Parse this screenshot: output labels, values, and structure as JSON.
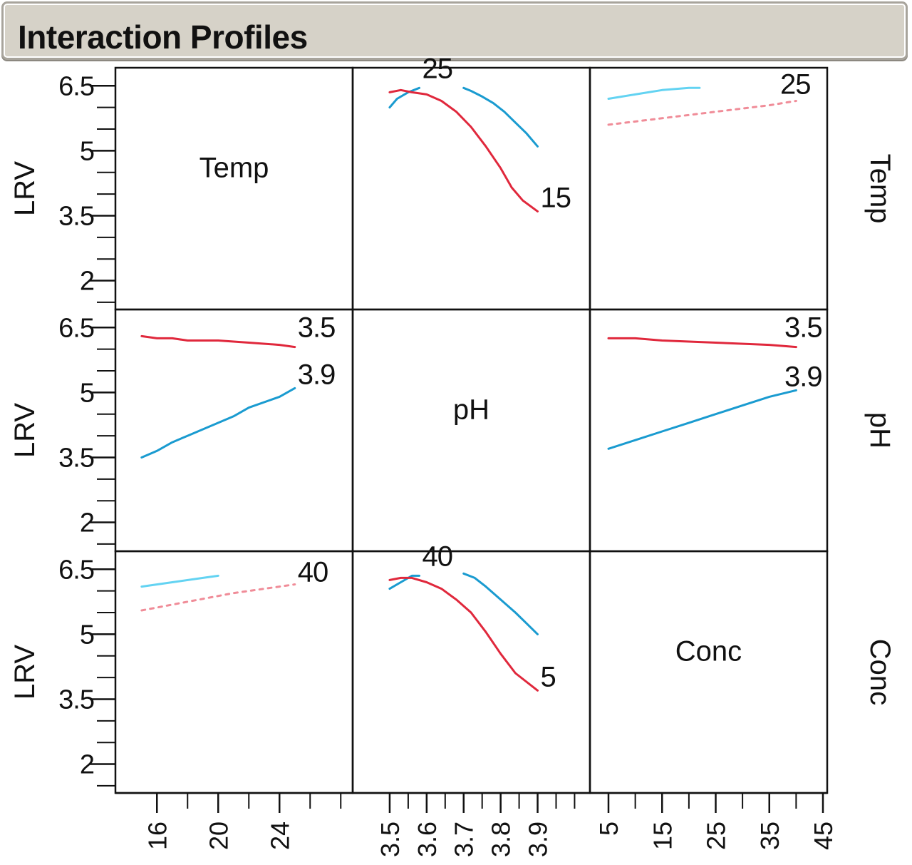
{
  "title": "Interaction Profiles",
  "colors": {
    "red": "#e0283c",
    "blue": "#1a9bd0",
    "light_blue": "#63d3f2",
    "pink": "#f08c98"
  },
  "chart_data": {
    "type": "line",
    "grid": false,
    "y_axis_label": "LRV",
    "y_ticks": [
      "6.5",
      "5",
      "3.5",
      "2"
    ],
    "y_tick_values": [
      6.5,
      5,
      3.5,
      2
    ],
    "y_range": [
      1.4,
      6.85
    ],
    "factors": [
      {
        "name": "Temp",
        "range": [
          14.5,
          28.5
        ],
        "ticks": [
          "16",
          "20",
          "24"
        ],
        "tick_values": [
          16,
          20,
          24
        ]
      },
      {
        "name": "pH",
        "range": [
          3.45,
          4.03
        ],
        "ticks": [
          "3.5",
          "3.6",
          "3.7",
          "3.8",
          "3.9"
        ],
        "tick_values": [
          3.5,
          3.6,
          3.7,
          3.8,
          3.9
        ]
      },
      {
        "name": "Conc",
        "range": [
          5,
          45
        ],
        "ticks": [
          "5",
          "15",
          "25",
          "35",
          "45"
        ],
        "tick_values": [
          5,
          15,
          25,
          35,
          45
        ]
      }
    ],
    "panels": [
      {
        "row": 0,
        "col": 0,
        "diagonal": true,
        "label": "Temp"
      },
      {
        "row": 0,
        "col": 1,
        "labels": [
          "25",
          "15"
        ],
        "series": [
          {
            "color": "blue",
            "dashed": false,
            "x": [
              3.5,
              3.52,
              3.55,
              3.58
            ],
            "y": [
              6.0,
              6.2,
              6.35,
              6.45
            ]
          },
          {
            "color": "blue",
            "dashed": false,
            "x": [
              3.7,
              3.72,
              3.75,
              3.78,
              3.81,
              3.84,
              3.87,
              3.9
            ],
            "y": [
              6.45,
              6.38,
              6.25,
              6.1,
              5.9,
              5.65,
              5.4,
              5.1
            ]
          },
          {
            "color": "red",
            "dashed": false,
            "x": [
              3.5,
              3.53,
              3.56,
              3.6,
              3.64,
              3.68,
              3.72,
              3.76,
              3.8,
              3.83,
              3.86,
              3.9
            ],
            "y": [
              6.35,
              6.4,
              6.35,
              6.3,
              6.15,
              5.9,
              5.55,
              5.1,
              4.6,
              4.15,
              3.85,
              3.6
            ]
          }
        ]
      },
      {
        "row": 0,
        "col": 2,
        "labels": [
          "25"
        ],
        "series": [
          {
            "color": "light_blue",
            "dashed": false,
            "x": [
              5,
              10,
              15,
              20,
              22
            ],
            "y": [
              6.2,
              6.3,
              6.4,
              6.45,
              6.45
            ]
          },
          {
            "color": "pink",
            "dashed": true,
            "x": [
              5,
              15,
              25,
              35,
              40
            ],
            "y": [
              5.6,
              5.75,
              5.9,
              6.05,
              6.15
            ]
          }
        ]
      },
      {
        "row": 1,
        "col": 0,
        "labels": [
          "3.5",
          "3.9"
        ],
        "series": [
          {
            "color": "red",
            "dashed": false,
            "x": [
              15,
              16,
              17,
              18,
              20,
              22,
              24,
              25
            ],
            "y": [
              6.3,
              6.25,
              6.25,
              6.2,
              6.2,
              6.15,
              6.1,
              6.05
            ]
          },
          {
            "color": "blue",
            "dashed": false,
            "x": [
              15,
              16,
              17,
              18,
              20,
              21,
              22,
              24,
              25
            ],
            "y": [
              3.5,
              3.65,
              3.85,
              4.0,
              4.3,
              4.45,
              4.65,
              4.9,
              5.1
            ]
          }
        ]
      },
      {
        "row": 1,
        "col": 1,
        "diagonal": true,
        "label": "pH"
      },
      {
        "row": 1,
        "col": 2,
        "labels": [
          "3.5",
          "3.9"
        ],
        "series": [
          {
            "color": "red",
            "dashed": false,
            "x": [
              5,
              10,
              15,
              25,
              35,
              40
            ],
            "y": [
              6.25,
              6.25,
              6.2,
              6.15,
              6.1,
              6.05
            ]
          },
          {
            "color": "blue",
            "dashed": false,
            "x": [
              5,
              10,
              15,
              20,
              25,
              30,
              35,
              40
            ],
            "y": [
              3.7,
              3.9,
              4.1,
              4.3,
              4.5,
              4.7,
              4.9,
              5.05
            ]
          }
        ]
      },
      {
        "row": 2,
        "col": 0,
        "labels": [
          "40"
        ],
        "series": [
          {
            "color": "light_blue",
            "dashed": false,
            "x": [
              15,
              17,
              19,
              20
            ],
            "y": [
              6.1,
              6.2,
              6.3,
              6.35
            ]
          },
          {
            "color": "pink",
            "dashed": true,
            "x": [
              15,
              18,
              21,
              24,
              25
            ],
            "y": [
              5.55,
              5.75,
              5.95,
              6.1,
              6.15
            ]
          }
        ]
      },
      {
        "row": 2,
        "col": 1,
        "labels": [
          "40",
          "5"
        ],
        "series": [
          {
            "color": "blue",
            "dashed": false,
            "x": [
              3.5,
              3.53,
              3.56,
              3.58
            ],
            "y": [
              6.05,
              6.2,
              6.35,
              6.35
            ]
          },
          {
            "color": "blue",
            "dashed": false,
            "x": [
              3.7,
              3.73,
              3.76,
              3.8,
              3.84,
              3.87,
              3.9
            ],
            "y": [
              6.4,
              6.3,
              6.1,
              5.8,
              5.5,
              5.25,
              5.0
            ]
          },
          {
            "color": "red",
            "dashed": false,
            "x": [
              3.5,
              3.53,
              3.56,
              3.6,
              3.64,
              3.68,
              3.72,
              3.76,
              3.8,
              3.84,
              3.9
            ],
            "y": [
              6.25,
              6.3,
              6.3,
              6.2,
              6.05,
              5.8,
              5.5,
              5.05,
              4.55,
              4.1,
              3.7
            ]
          }
        ]
      },
      {
        "row": 2,
        "col": 2,
        "diagonal": true,
        "label": "Conc"
      }
    ]
  }
}
